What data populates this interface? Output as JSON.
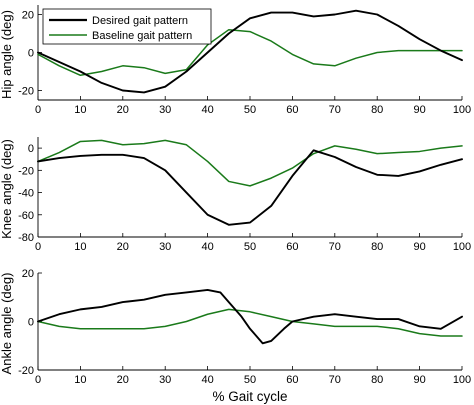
{
  "xlabel": "% Gait cycle",
  "legend": {
    "placement": "top-left",
    "entries": [
      "Desired gait pattern",
      "Baseline gait pattern"
    ]
  },
  "colors": {
    "desired": "#000000",
    "baseline": "#1a7a1a"
  },
  "chart_data": [
    {
      "type": "line",
      "ylabel": "Hip angle (deg)",
      "xlim": [
        0,
        100
      ],
      "ylim": [
        -25,
        25
      ],
      "xticks": [
        0,
        10,
        20,
        30,
        40,
        50,
        60,
        70,
        80,
        90,
        100
      ],
      "yticks": [
        -20,
        0,
        20
      ],
      "xticklabels": [
        "0",
        "10",
        "20",
        "30",
        "40",
        "50",
        "60",
        "70",
        "80",
        "90",
        "100"
      ],
      "yticklabels": [
        "-20",
        "0",
        "20"
      ],
      "legend": "top-left",
      "series": [
        {
          "name": "Desired gait pattern",
          "x": [
            0,
            5,
            10,
            15,
            20,
            25,
            30,
            35,
            40,
            45,
            50,
            55,
            60,
            65,
            70,
            75,
            80,
            85,
            90,
            95,
            100
          ],
          "y": [
            0,
            -5,
            -10,
            -16,
            -20,
            -21,
            -18,
            -10,
            0,
            10,
            18,
            21,
            21,
            19,
            20,
            22,
            20,
            14,
            7,
            1,
            -4
          ]
        },
        {
          "name": "Baseline gait pattern",
          "x": [
            0,
            5,
            10,
            15,
            20,
            25,
            30,
            35,
            40,
            45,
            50,
            55,
            60,
            65,
            70,
            75,
            80,
            85,
            90,
            95,
            100
          ],
          "y": [
            -1,
            -7,
            -12,
            -10,
            -7,
            -8,
            -11,
            -9,
            4,
            12,
            11,
            6,
            -1,
            -6,
            -7,
            -3,
            0,
            1,
            1,
            1,
            1
          ]
        }
      ]
    },
    {
      "type": "line",
      "ylabel": "Knee angle (deg)",
      "xlim": [
        0,
        100
      ],
      "ylim": [
        -80,
        10
      ],
      "xticks": [
        0,
        10,
        20,
        30,
        40,
        50,
        60,
        70,
        80,
        90,
        100
      ],
      "yticks": [
        -80,
        -60,
        -40,
        -20,
        0
      ],
      "xticklabels": [
        "0",
        "10",
        "20",
        "30",
        "40",
        "50",
        "60",
        "70",
        "80",
        "90",
        "100"
      ],
      "yticklabels": [
        "-80",
        "-60",
        "-40",
        "-20",
        "0"
      ],
      "series": [
        {
          "name": "Desired gait pattern",
          "x": [
            0,
            5,
            10,
            15,
            20,
            25,
            30,
            35,
            40,
            45,
            50,
            55,
            60,
            65,
            70,
            75,
            80,
            85,
            90,
            95,
            100
          ],
          "y": [
            -12,
            -9,
            -7,
            -6,
            -6,
            -9,
            -20,
            -40,
            -60,
            -69,
            -67,
            -52,
            -25,
            -2,
            -8,
            -17,
            -24,
            -25,
            -21,
            -15,
            -10
          ]
        },
        {
          "name": "Baseline gait pattern",
          "x": [
            0,
            5,
            10,
            15,
            20,
            25,
            30,
            35,
            40,
            45,
            50,
            55,
            60,
            65,
            70,
            75,
            80,
            85,
            90,
            95,
            100
          ],
          "y": [
            -12,
            -4,
            6,
            7,
            3,
            4,
            7,
            3,
            -12,
            -30,
            -34,
            -27,
            -18,
            -5,
            2,
            -1,
            -5,
            -4,
            -3,
            0,
            2
          ]
        }
      ]
    },
    {
      "type": "line",
      "ylabel": "Ankle angle (deg)",
      "xlim": [
        0,
        100
      ],
      "ylim": [
        -20,
        20
      ],
      "xticks": [
        0,
        10,
        20,
        30,
        40,
        50,
        60,
        70,
        80,
        90,
        100
      ],
      "yticks": [
        -20,
        0,
        20
      ],
      "xticklabels": [
        "0",
        "10",
        "20",
        "30",
        "40",
        "50",
        "60",
        "70",
        "80",
        "90",
        "100"
      ],
      "yticklabels": [
        "-20",
        "0",
        "20"
      ],
      "series": [
        {
          "name": "Desired gait pattern",
          "x": [
            0,
            5,
            10,
            15,
            20,
            25,
            30,
            35,
            40,
            43,
            45,
            48,
            50,
            53,
            55,
            58,
            60,
            65,
            70,
            75,
            80,
            85,
            90,
            95,
            100
          ],
          "y": [
            0,
            3,
            5,
            6,
            8,
            9,
            11,
            12,
            13,
            12,
            8,
            2,
            -3,
            -9,
            -8,
            -3,
            0,
            2,
            3,
            2,
            1,
            1,
            -2,
            -3,
            2
          ]
        },
        {
          "name": "Baseline gait pattern",
          "x": [
            0,
            5,
            10,
            15,
            20,
            25,
            30,
            35,
            40,
            45,
            50,
            55,
            60,
            65,
            70,
            75,
            80,
            85,
            90,
            95,
            100
          ],
          "y": [
            0,
            -2,
            -3,
            -3,
            -3,
            -3,
            -2,
            0,
            3,
            5,
            4,
            2,
            0,
            -1,
            -2,
            -2,
            -2,
            -3,
            -5,
            -6,
            -6
          ]
        }
      ]
    }
  ]
}
